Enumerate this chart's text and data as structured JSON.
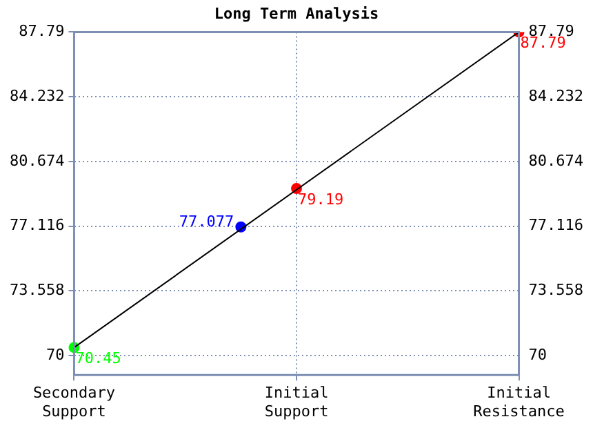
{
  "chart_data": {
    "type": "line",
    "title": "Long Term Analysis",
    "categories": [
      "Secondary Support",
      null,
      null,
      null,
      "Initial Support",
      null,
      null,
      null,
      "Initial Resistance"
    ],
    "ylim": [
      68.94,
      87.79
    ],
    "yticks": [
      70,
      73.558,
      77.116,
      80.674,
      84.232,
      87.79
    ],
    "y2lim": [
      68.94,
      87.79
    ],
    "y2ticks": [
      70,
      73.558,
      77.116,
      80.674,
      84.232,
      87.79
    ],
    "grid": true,
    "legend": false,
    "series": [
      {
        "color": "#000000",
        "marker": "none",
        "values": [
          70.45,
          null,
          null,
          null,
          null,
          null,
          null,
          null,
          87.79
        ]
      },
      {
        "type": "scatter",
        "color": "#00ff00",
        "marker": "circle",
        "values": [
          70.45,
          null,
          null,
          null,
          null,
          null,
          null,
          null,
          null
        ],
        "value_labels": [
          "70.45",
          null,
          null,
          null,
          null,
          null,
          null,
          null,
          null
        ]
      },
      {
        "type": "scatter",
        "color": "#0000ff",
        "marker": "circle",
        "values": [
          null,
          null,
          null,
          77.077,
          null,
          null,
          null,
          null,
          null
        ],
        "value_labels": [
          null,
          null,
          null,
          "77.077",
          null,
          null,
          null,
          null,
          null
        ]
      },
      {
        "type": "scatter",
        "color": "#ff0000",
        "marker": "circle",
        "values": [
          null,
          null,
          null,
          null,
          79.19,
          null,
          null,
          null,
          87.79
        ],
        "value_labels": [
          null,
          null,
          null,
          null,
          "79.19",
          null,
          null,
          null,
          "87.79"
        ]
      }
    ]
  }
}
